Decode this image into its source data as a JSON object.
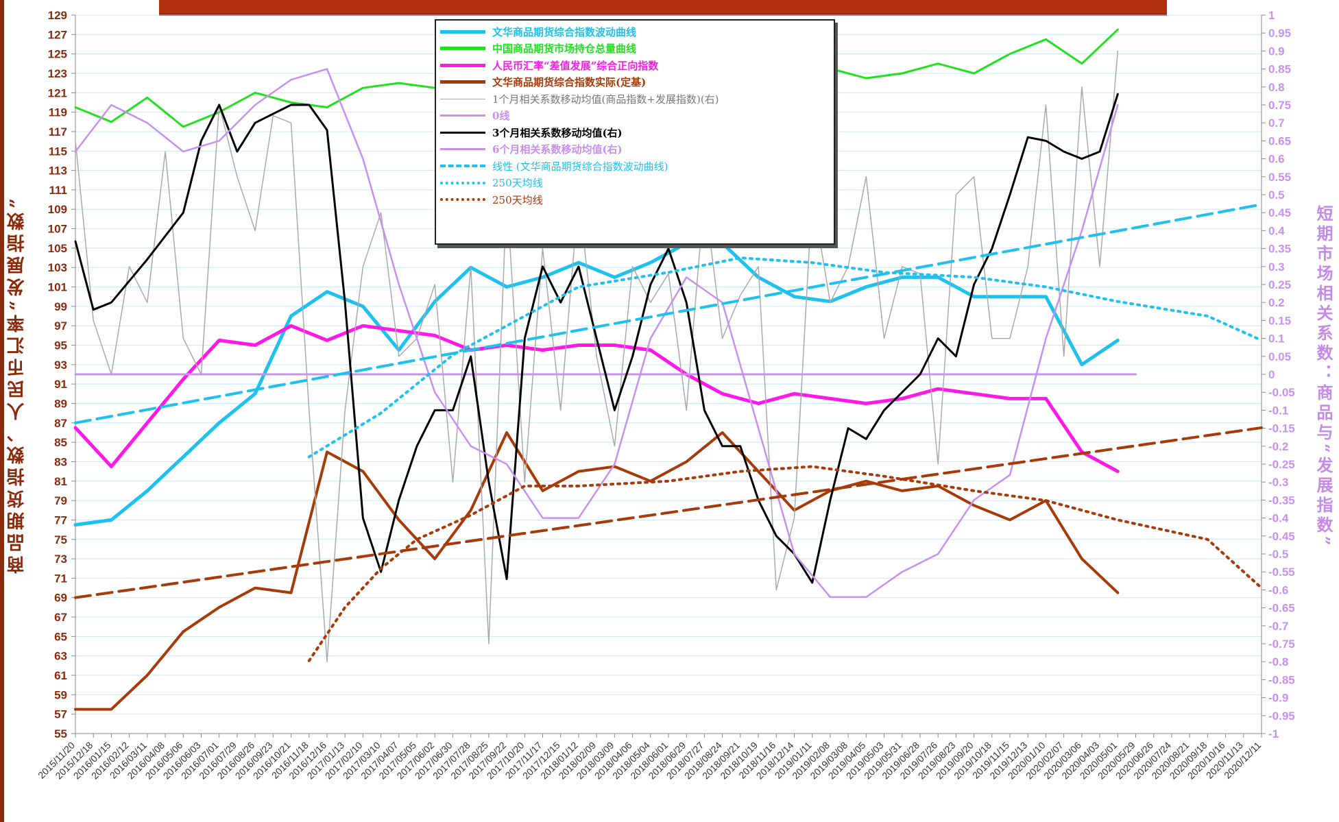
{
  "colors": {
    "commodity_index": "#1ec0ee",
    "open_interest": "#22e020",
    "rmb_index": "#ff18e8",
    "commodity_actual": "#a63a08",
    "corr_1m": "#a9a9a9",
    "zero_line": "#c990f0",
    "corr_3m": "#000000",
    "corr_6m": "#c88ef0",
    "grid": "#c8e8f8",
    "title_bar": "#b03010"
  },
  "axis_labels": {
    "left": "商品期货指数、人民币汇率“发展指数”",
    "right": "短期市场相关系数：商品与“发展指数”"
  },
  "left_ticks": [
    "129",
    "127",
    "125",
    "123",
    "121",
    "119",
    "117",
    "115",
    "113",
    "111",
    "109",
    "107",
    "105",
    "103",
    "101",
    "99",
    "97",
    "95",
    "93",
    "91",
    "89",
    "87",
    "85",
    "83",
    "81",
    "79",
    "77",
    "75",
    "73",
    "71",
    "69",
    "67",
    "65",
    "63",
    "61",
    "59",
    "57",
    "55"
  ],
  "right_ticks": [
    "1",
    "0.95",
    "0.9",
    "0.85",
    "0.8",
    "0.75",
    "0.7",
    "0.65",
    "0.6",
    "0.55",
    "0.5",
    "0.45",
    "0.4",
    "0.35",
    "0.3",
    "0.25",
    "0.2",
    "0.15",
    "0.1",
    "0.05",
    "0",
    "-0.05",
    "-0.1",
    "-0.15",
    "-0.2",
    "-0.25",
    "-0.3",
    "-0.35",
    "-0.4",
    "-0.45",
    "-0.5",
    "-0.55",
    "-0.6",
    "-0.65",
    "-0.7",
    "-0.75",
    "-0.8",
    "-0.85",
    "-0.9",
    "-0.95",
    "-1"
  ],
  "x_ticks": [
    "2015/11/20",
    "2015/12/18",
    "2016/01/15",
    "2016/02/12",
    "2016/03/11",
    "2016/04/08",
    "2016/05/06",
    "2016/06/03",
    "2016/07/01",
    "2016/07/29",
    "2016/08/26",
    "2016/09/23",
    "2016/10/21",
    "2016/11/18",
    "2016/12/16",
    "2017/01/13",
    "2017/02/10",
    "2017/03/10",
    "2017/04/07",
    "2017/05/05",
    "2017/06/02",
    "2017/06/30",
    "2017/07/28",
    "2017/08/25",
    "2017/09/22",
    "2017/10/20",
    "2017/11/17",
    "2017/12/15",
    "2018/01/12",
    "2018/02/09",
    "2018/03/09",
    "2018/04/06",
    "2018/05/04",
    "2018/06/01",
    "2018/06/29",
    "2018/07/27",
    "2018/08/24",
    "2018/09/21",
    "2018/10/19",
    "2018/11/16",
    "2018/12/14",
    "2019/01/11",
    "2019/02/08",
    "2019/03/08",
    "2019/04/05",
    "2019/05/03",
    "2019/05/31",
    "2019/06/28",
    "2019/07/26",
    "2019/08/23",
    "2019/09/20",
    "2019/10/18",
    "2019/11/15",
    "2019/12/13",
    "2020/01/10",
    "2020/02/07",
    "2020/03/06",
    "2020/04/03",
    "2020/05/01",
    "2020/05/29",
    "2020/06/26",
    "2020/07/24",
    "2020/08/21",
    "2020/09/18",
    "2020/10/16",
    "2020/11/13",
    "2020/12/11"
  ],
  "legend": [
    {
      "key": "commodity_index",
      "label": "文华商品期货综合指数波动曲线",
      "style": "solid-thick"
    },
    {
      "key": "open_interest",
      "label": "中国商品期货市场持仓总量曲线",
      "style": "solid-thick"
    },
    {
      "key": "rmb_index",
      "label": "人民币汇率“差值发展”综合正向指数",
      "style": "solid-thick"
    },
    {
      "key": "commodity_actual",
      "label": "文华商品期货综合指数实际(定基)",
      "style": "solid-thick"
    },
    {
      "key": "corr_1m",
      "label": "1个月相关系数移动均值(商品指数+发展指数)(右)",
      "style": "solid-thin"
    },
    {
      "key": "zero_line",
      "label": "0线",
      "style": "solid-medium"
    },
    {
      "key": "corr_3m",
      "label": "3个月相关系数移动均值(右)",
      "style": "solid-medium"
    },
    {
      "key": "corr_6m",
      "label": "6个月相关系数移动均值(右)",
      "style": "solid-medium"
    },
    {
      "key": "commodity_index",
      "label": "线性 (文华商品期货综合指数波动曲线)",
      "style": "dash"
    },
    {
      "key": "commodity_index",
      "label": "250天均线",
      "style": "dot"
    },
    {
      "key": "commodity_actual",
      "label": "250天均线",
      "style": "dot"
    }
  ],
  "chart_data": {
    "type": "line",
    "x_range": [
      "2015/11/20",
      "2020/12/11"
    ],
    "ylim_left": [
      55,
      129
    ],
    "ylim_right": [
      -1,
      1
    ],
    "grid": true,
    "legend_position": "top-center",
    "series": [
      {
        "name": "文华商品期货综合指数波动曲线",
        "axis": "left",
        "x": [
          "2015/11/20",
          "2016/01/15",
          "2016/03/11",
          "2016/05/06",
          "2016/07/01",
          "2016/08/26",
          "2016/10/21",
          "2016/12/16",
          "2017/02/10",
          "2017/04/07",
          "2017/06/02",
          "2017/07/28",
          "2017/09/22",
          "2017/11/17",
          "2018/01/12",
          "2018/03/09",
          "2018/05/04",
          "2018/06/29",
          "2018/08/24",
          "2018/10/19",
          "2018/12/14",
          "2019/02/08",
          "2019/04/05",
          "2019/05/31",
          "2019/07/26",
          "2019/09/20",
          "2019/11/15",
          "2020/01/10",
          "2020/03/06",
          "2020/05/01"
        ],
        "values": [
          76.5,
          77,
          80,
          83.5,
          87,
          90,
          98,
          100.5,
          99,
          94.5,
          99.5,
          103,
          101,
          102,
          103.5,
          102,
          103.5,
          105.5,
          105.5,
          102,
          100,
          99.5,
          101,
          102,
          102,
          100,
          100,
          100,
          93,
          95.5
        ]
      },
      {
        "name": "中国商品期货市场持仓总量曲线",
        "axis": "left",
        "x": [
          "2015/11/20",
          "2016/01/15",
          "2016/03/11",
          "2016/05/06",
          "2016/07/01",
          "2016/08/26",
          "2016/10/21",
          "2016/12/16",
          "2017/02/10",
          "2017/04/07",
          "2017/06/02",
          "2017/07/28",
          "2017/09/22",
          "2017/11/17",
          "2018/01/12",
          "2018/03/09",
          "2018/05/04",
          "2018/06/29",
          "2018/08/24",
          "2018/10/19",
          "2018/12/14",
          "2019/02/08",
          "2019/04/05",
          "2019/05/31",
          "2019/07/26",
          "2019/09/20",
          "2019/11/15",
          "2020/01/10",
          "2020/03/06",
          "2020/05/01"
        ],
        "values": [
          119.5,
          118,
          120.5,
          117.5,
          119,
          121,
          120,
          119.5,
          121.5,
          122,
          121.5,
          122,
          123,
          123.5,
          124.5,
          124.5,
          125,
          123.5,
          123,
          122.5,
          123,
          123.5,
          122.5,
          123,
          124,
          123,
          125,
          126.5,
          124,
          127.5
        ]
      },
      {
        "name": "人民币汇率“差值发展”综合正向指数",
        "axis": "left",
        "x": [
          "2015/11/20",
          "2016/01/15",
          "2016/03/11",
          "2016/05/06",
          "2016/07/01",
          "2016/08/26",
          "2016/10/21",
          "2016/12/16",
          "2017/02/10",
          "2017/04/07",
          "2017/06/02",
          "2017/07/28",
          "2017/09/22",
          "2017/11/17",
          "2018/01/12",
          "2018/03/09",
          "2018/05/04",
          "2018/06/29",
          "2018/08/24",
          "2018/10/19",
          "2018/12/14",
          "2019/02/08",
          "2019/04/05",
          "2019/05/31",
          "2019/07/26",
          "2019/09/20",
          "2019/11/15",
          "2020/01/10",
          "2020/03/06",
          "2020/05/01"
        ],
        "values": [
          86.5,
          82.5,
          87,
          91.5,
          95.5,
          95,
          97,
          95.5,
          97,
          96.5,
          96,
          94.5,
          95,
          94.5,
          95,
          95,
          94.5,
          92,
          90,
          89,
          90,
          89.5,
          89,
          89.5,
          90.5,
          90,
          89.5,
          89.5,
          84,
          82
        ]
      },
      {
        "name": "文华商品期货综合指数实际(定基)",
        "axis": "left",
        "x": [
          "2015/11/20",
          "2016/01/15",
          "2016/03/11",
          "2016/05/06",
          "2016/07/01",
          "2016/08/26",
          "2016/10/21",
          "2016/12/16",
          "2017/02/10",
          "2017/04/07",
          "2017/06/02",
          "2017/07/28",
          "2017/09/22",
          "2017/11/17",
          "2018/01/12",
          "2018/03/09",
          "2018/05/04",
          "2018/06/29",
          "2018/08/24",
          "2018/10/19",
          "2018/12/14",
          "2019/02/08",
          "2019/04/05",
          "2019/05/31",
          "2019/07/26",
          "2019/09/20",
          "2019/11/15",
          "2020/01/10",
          "2020/03/06",
          "2020/05/01"
        ],
        "values": [
          57.5,
          57.5,
          61,
          65.5,
          68,
          70,
          69.5,
          84,
          82,
          77,
          73,
          78,
          86,
          80,
          82,
          82.5,
          81,
          83,
          86,
          82,
          78,
          80,
          81,
          80,
          80.5,
          78.5,
          77,
          79,
          73,
          69.5
        ]
      },
      {
        "name": "1个月相关系数移动均值(商品指数+发展指数)(右)",
        "axis": "right",
        "x": [
          "2015/11/20",
          "2015/12/18",
          "2016/01/15",
          "2016/02/12",
          "2016/03/11",
          "2016/04/08",
          "2016/05/06",
          "2016/06/03",
          "2016/07/01",
          "2016/07/29",
          "2016/08/26",
          "2016/09/23",
          "2016/10/21",
          "2016/11/18",
          "2016/12/16",
          "2017/01/13",
          "2017/02/10",
          "2017/03/10",
          "2017/04/07",
          "2017/05/05",
          "2017/06/02",
          "2017/06/30",
          "2017/07/28",
          "2017/08/25",
          "2017/09/22",
          "2017/10/20",
          "2017/11/17",
          "2017/12/15",
          "2018/01/12",
          "2018/02/09",
          "2018/03/09",
          "2018/04/06",
          "2018/05/04",
          "2018/06/01",
          "2018/06/29",
          "2018/07/27",
          "2018/08/24",
          "2018/09/21",
          "2018/10/19",
          "2018/11/16",
          "2018/12/14",
          "2019/01/11",
          "2019/02/08",
          "2019/03/08",
          "2019/04/05",
          "2019/05/03",
          "2019/05/31",
          "2019/06/28",
          "2019/07/26",
          "2019/08/23",
          "2019/09/20",
          "2019/10/18",
          "2019/11/15",
          "2019/12/13",
          "2020/01/10",
          "2020/02/07",
          "2020/03/06",
          "2020/04/03",
          "2020/05/01"
        ],
        "values": [
          0.65,
          0.15,
          0,
          0.3,
          0.2,
          0.62,
          0.1,
          0,
          0.75,
          0.55,
          0.4,
          0.72,
          0.7,
          -0.1,
          -0.8,
          -0.1,
          0.3,
          0.45,
          0.05,
          0.1,
          0.25,
          -0.3,
          0.3,
          -0.75,
          0.5,
          -0.3,
          0.35,
          -0.1,
          0.5,
          0.05,
          -0.2,
          0.3,
          0.2,
          0.28,
          -0.1,
          0.5,
          0.1,
          0.22,
          0.3,
          -0.6,
          -0.4,
          0.5,
          0.2,
          0.3,
          0.55,
          0.1,
          0.3,
          0.28,
          -0.25,
          0.5,
          0.55,
          0.1,
          0.1,
          0.3,
          0.75,
          0.05,
          0.8,
          0.3,
          0.9
        ]
      },
      {
        "name": "0线",
        "axis": "right",
        "x": [
          "2015/11/20",
          "2020/05/29"
        ],
        "values": [
          0,
          0
        ]
      },
      {
        "name": "3个月相关系数移动均值(右)",
        "axis": "right",
        "x": [
          "2015/11/20",
          "2015/12/18",
          "2016/01/15",
          "2016/03/11",
          "2016/05/06",
          "2016/06/03",
          "2016/07/01",
          "2016/07/29",
          "2016/08/26",
          "2016/10/21",
          "2016/11/18",
          "2016/12/16",
          "2017/01/13",
          "2017/02/10",
          "2017/03/10",
          "2017/04/07",
          "2017/05/05",
          "2017/06/02",
          "2017/06/30",
          "2017/07/28",
          "2017/08/25",
          "2017/09/22",
          "2017/10/20",
          "2017/11/17",
          "2017/12/15",
          "2018/01/12",
          "2018/03/09",
          "2018/04/06",
          "2018/05/04",
          "2018/06/01",
          "2018/06/29",
          "2018/07/27",
          "2018/08/24",
          "2018/09/21",
          "2018/10/19",
          "2018/11/16",
          "2018/12/14",
          "2019/01/11",
          "2019/02/08",
          "2019/03/08",
          "2019/04/05",
          "2019/05/03",
          "2019/05/31",
          "2019/06/28",
          "2019/07/26",
          "2019/08/23",
          "2019/09/20",
          "2019/10/18",
          "2019/11/15",
          "2019/12/13",
          "2020/01/10",
          "2020/02/07",
          "2020/03/06",
          "2020/04/03",
          "2020/05/01"
        ],
        "values": [
          0.37,
          0.18,
          0.2,
          0.32,
          0.45,
          0.65,
          0.75,
          0.62,
          0.7,
          0.75,
          0.75,
          0.68,
          0.2,
          -0.4,
          -0.55,
          -0.35,
          -0.2,
          -0.1,
          -0.1,
          0.05,
          -0.3,
          -0.57,
          0.1,
          0.3,
          0.2,
          0.3,
          -0.1,
          0.05,
          0.25,
          0.35,
          0.2,
          -0.1,
          -0.2,
          -0.2,
          -0.35,
          -0.45,
          -0.5,
          -0.58,
          -0.35,
          -0.15,
          -0.18,
          -0.1,
          -0.05,
          0,
          0.1,
          0.05,
          0.25,
          0.35,
          0.5,
          0.66,
          0.65,
          0.62,
          0.6,
          0.62,
          0.78
        ]
      },
      {
        "name": "6个月相关系数移动均值(右)",
        "axis": "right",
        "x": [
          "2015/11/20",
          "2016/01/15",
          "2016/03/11",
          "2016/05/06",
          "2016/07/01",
          "2016/08/26",
          "2016/10/21",
          "2016/12/16",
          "2017/02/10",
          "2017/04/07",
          "2017/06/02",
          "2017/07/28",
          "2017/09/22",
          "2017/11/17",
          "2018/01/12",
          "2018/03/09",
          "2018/05/04",
          "2018/06/29",
          "2018/08/24",
          "2018/10/19",
          "2018/12/14",
          "2019/02/08",
          "2019/04/05",
          "2019/05/31",
          "2019/07/26",
          "2019/09/20",
          "2019/11/15",
          "2020/01/10",
          "2020/03/06",
          "2020/05/01"
        ],
        "values": [
          0.62,
          0.75,
          0.7,
          0.62,
          0.65,
          0.75,
          0.82,
          0.85,
          0.6,
          0.25,
          -0.05,
          -0.2,
          -0.25,
          -0.4,
          -0.4,
          -0.25,
          0.1,
          0.27,
          0.2,
          -0.15,
          -0.5,
          -0.62,
          -0.62,
          -0.55,
          -0.5,
          -0.35,
          -0.28,
          0.1,
          0.4,
          0.75
        ]
      },
      {
        "name": "线性 (文华商品期货综合指数波动曲线)",
        "axis": "left",
        "x": [
          "2015/11/20",
          "2020/12/11"
        ],
        "values": [
          87,
          109.5
        ]
      },
      {
        "name": "250天均线 (文华商品期货综合指数波动曲线)",
        "axis": "left",
        "x": [
          "2016/11/18",
          "2017/03/10",
          "2017/06/30",
          "2017/10/20",
          "2018/01/12",
          "2018/06/01",
          "2018/09/21",
          "2019/01/11",
          "2019/05/03",
          "2019/09/20",
          "2020/01/10",
          "2020/05/01",
          "2020/09/18",
          "2020/12/11"
        ],
        "values": [
          83.5,
          88,
          94,
          98,
          101,
          102.5,
          104,
          103.5,
          102.5,
          102,
          101,
          99.5,
          98,
          95.5
        ]
      },
      {
        "name": "250天均线 (文华商品期货综合指数实际)",
        "axis": "left",
        "x": [
          "2016/11/18",
          "2017/01/13",
          "2017/03/10",
          "2017/05/05",
          "2017/07/28",
          "2017/10/20",
          "2018/01/12",
          "2018/06/01",
          "2018/09/21",
          "2019/01/11",
          "2019/05/03",
          "2019/09/20",
          "2020/01/10",
          "2020/05/01",
          "2020/09/18",
          "2020/12/11"
        ],
        "values": [
          62.5,
          68,
          72,
          75,
          77.5,
          80.5,
          80.5,
          81,
          82,
          82.5,
          81.5,
          80,
          79,
          77,
          75,
          70
        ]
      },
      {
        "name": "线性 (文华商品期货综合指数实际)",
        "axis": "left",
        "x": [
          "2015/11/20",
          "2020/12/11"
        ],
        "values": [
          69,
          86.5
        ]
      }
    ]
  }
}
